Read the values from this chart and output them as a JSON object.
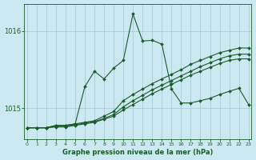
{
  "xlabel": "Graphe pression niveau de la mer (hPa)",
  "x_ticks": [
    0,
    1,
    2,
    3,
    4,
    5,
    6,
    7,
    8,
    9,
    10,
    11,
    12,
    13,
    14,
    15,
    16,
    17,
    18,
    19,
    20,
    21,
    22,
    23
  ],
  "y_ticks": [
    1015,
    1016
  ],
  "ylim": [
    1014.6,
    1016.35
  ],
  "xlim": [
    -0.3,
    23.3
  ],
  "background_color": "#cce8f0",
  "grid_color": "#aacdd8",
  "line_color": "#1a5c2a",
  "series": [
    [
      1014.75,
      1014.75,
      1014.75,
      1014.78,
      1014.78,
      1014.8,
      1015.28,
      1015.48,
      1015.38,
      1015.52,
      1015.62,
      1016.22,
      1015.87,
      1015.88,
      1015.83,
      1015.25,
      1015.07,
      1015.07,
      1015.1,
      1015.13,
      1015.18,
      1015.22,
      1015.26,
      1015.05
    ],
    [
      1014.75,
      1014.75,
      1014.75,
      1014.78,
      1014.78,
      1014.8,
      1014.82,
      1014.84,
      1014.9,
      1014.96,
      1015.1,
      1015.18,
      1015.25,
      1015.32,
      1015.38,
      1015.44,
      1015.5,
      1015.57,
      1015.62,
      1015.67,
      1015.72,
      1015.75,
      1015.78,
      1015.78
    ],
    [
      1014.75,
      1014.75,
      1014.75,
      1014.77,
      1014.77,
      1014.79,
      1014.81,
      1014.83,
      1014.87,
      1014.92,
      1015.02,
      1015.1,
      1015.17,
      1015.24,
      1015.3,
      1015.36,
      1015.42,
      1015.48,
      1015.54,
      1015.59,
      1015.64,
      1015.68,
      1015.7,
      1015.7
    ],
    [
      1014.75,
      1014.75,
      1014.75,
      1014.76,
      1014.76,
      1014.78,
      1014.8,
      1014.82,
      1014.86,
      1014.9,
      1014.98,
      1015.05,
      1015.12,
      1015.19,
      1015.25,
      1015.31,
      1015.37,
      1015.43,
      1015.48,
      1015.53,
      1015.58,
      1015.62,
      1015.64,
      1015.64
    ]
  ],
  "marker": "D",
  "markersize": 2.0,
  "linewidth": 0.8,
  "xlabel_fontsize": 6,
  "ytick_fontsize": 6,
  "xtick_fontsize": 4.5
}
